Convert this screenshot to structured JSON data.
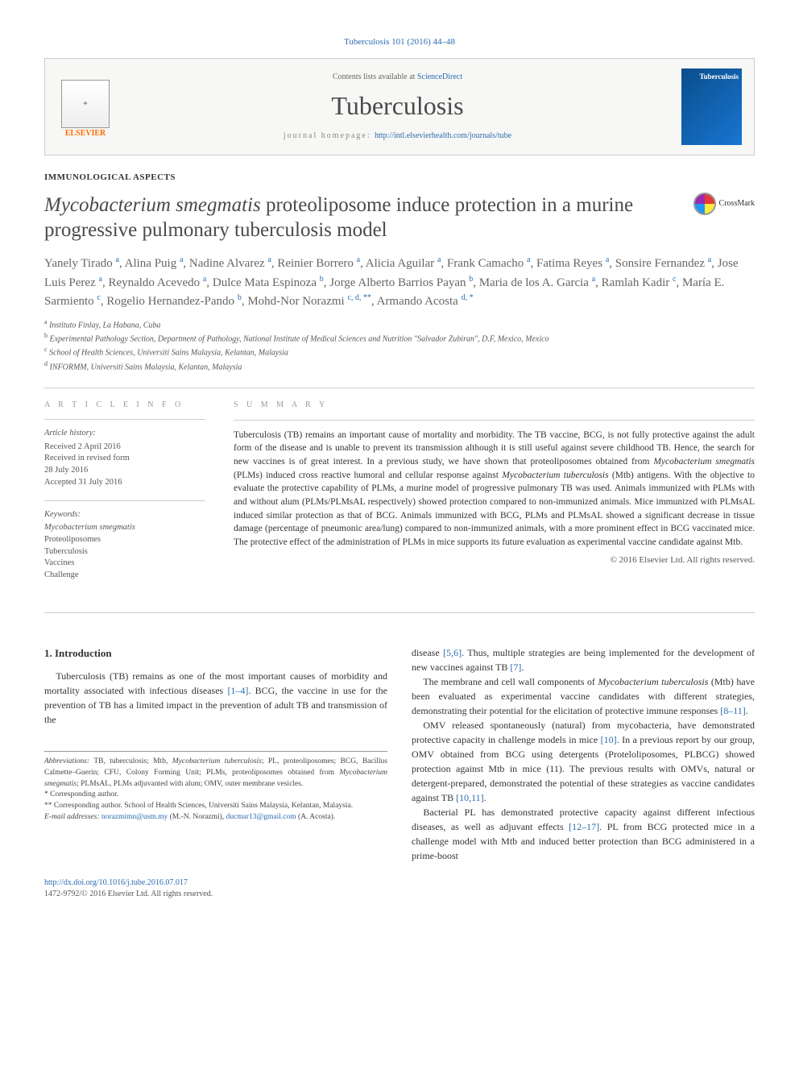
{
  "citation": "Tuberculosis 101 (2016) 44–48",
  "header": {
    "contents_prefix": "Contents lists available at ",
    "contents_link": "ScienceDirect",
    "journal": "Tuberculosis",
    "homepage_prefix": "journal homepage: ",
    "homepage_url": "http://intl.elsevierhealth.com/journals/tube",
    "publisher": "ELSEVIER",
    "cover_label": "Tuberculosis"
  },
  "section_label": "IMMUNOLOGICAL ASPECTS",
  "title_pre_italic": "Mycobacterium smegmatis",
  "title_rest": " proteoliposome induce protection in a murine progressive pulmonary tuberculosis model",
  "crossmark": "CrossMark",
  "authors_html": "Yanely Tirado <sup>a</sup>, Alina Puig <sup>a</sup>, Nadine Alvarez <sup>a</sup>, Reinier Borrero <sup>a</sup>, Alicia Aguilar <sup>a</sup>, Frank Camacho <sup>a</sup>, Fatima Reyes <sup>a</sup>, Sonsire Fernandez <sup>a</sup>, Jose Luis Perez <sup>a</sup>, Reynaldo Acevedo <sup>a</sup>, Dulce Mata Espinoza <sup>b</sup>, Jorge Alberto Barrios Payan <sup>b</sup>, Maria de los A. Garcia <sup>a</sup>, Ramlah Kadir <sup>c</sup>, María E. Sarmiento <sup>c</sup>, Rogelio Hernandez-Pando <sup>b</sup>, Mohd-Nor Norazmi <sup>c, d, **</sup>, Armando Acosta <sup>d, *</sup>",
  "affiliations": [
    {
      "key": "a",
      "text": "Instituto Finlay, La Habana, Cuba"
    },
    {
      "key": "b",
      "text": "Experimental Pathology Section, Department of Pathology, National Institute of Medical Sciences and Nutrition \"Salvador Zubiran\", D.F, Mexico, Mexico"
    },
    {
      "key": "c",
      "text": "School of Health Sciences, Universiti Sains Malaysia, Kelantan, Malaysia"
    },
    {
      "key": "d",
      "text": "INFORMM, Universiti Sains Malaysia, Kelantan, Malaysia"
    }
  ],
  "article_info": {
    "heading": "A R T I C L E  I N F O",
    "history_label": "Article history:",
    "history": [
      "Received 2 April 2016",
      "Received in revised form",
      "28 July 2016",
      "Accepted 31 July 2016"
    ],
    "keywords_label": "Keywords:",
    "keywords": [
      "Mycobacterium smegmatis",
      "Proteoliposomes",
      "Tuberculosis",
      "Vaccines",
      "Challenge"
    ]
  },
  "summary": {
    "heading": "S U M M A R Y",
    "text": "Tuberculosis (TB) remains an important cause of mortality and morbidity. The TB vaccine, BCG, is not fully protective against the adult form of the disease and is unable to prevent its transmission although it is still useful against severe childhood TB. Hence, the search for new vaccines is of great interest. In a previous study, we have shown that proteoliposomes obtained from Mycobacterium smegmatis (PLMs) induced cross reactive humoral and cellular response against Mycobacterium tuberculosis (Mtb) antigens. With the objective to evaluate the protective capability of PLMs, a murine model of progressive pulmonary TB was used. Animals immunized with PLMs with and without alum (PLMs/PLMsAL respectively) showed protection compared to non-immunized animals. Mice immunized with PLMsAL induced similar protection as that of BCG. Animals immunized with BCG, PLMs and PLMsAL showed a significant decrease in tissue damage (percentage of pneumonic area/lung) compared to non-immunized animals, with a more prominent effect in BCG vaccinated mice. The protective effect of the administration of PLMs in mice supports its future evaluation as experimental vaccine candidate against Mtb.",
    "copyright": "© 2016 Elsevier Ltd. All rights reserved."
  },
  "intro": {
    "heading": "1. Introduction",
    "p1_a": "Tuberculosis (TB) remains as one of the most important causes of morbidity and mortality associated with infectious diseases ",
    "p1_ref": "[1–4]",
    "p1_b": ". BCG, the vaccine in use for the prevention of TB has a limited impact in the prevention of adult TB and transmission of the"
  },
  "col2": {
    "p1_a": "disease ",
    "p1_ref1": "[5,6]",
    "p1_b": ". Thus, multiple strategies are being implemented for the development of new vaccines against TB ",
    "p1_ref2": "[7]",
    "p1_c": ".",
    "p2_a": "The membrane and cell wall components of ",
    "p2_it": "Mycobacterium tuberculosis",
    "p2_b": " (Mtb) have been evaluated as experimental vaccine candidates with different strategies, demonstrating their potential for the elicitation of protective immune responses ",
    "p2_ref": "[8–11]",
    "p2_c": ".",
    "p3_a": "OMV released spontaneously (natural) from mycobacteria, have demonstrated protective capacity in challenge models in mice ",
    "p3_ref1": "[10]",
    "p3_b": ". In a previous report by our group, OMV obtained from BCG using detergents (Proteloliposomes, PLBCG) showed protection against Mtb in mice (11). The previous results with OMVs, natural or detergent-prepared, demonstrated the potential of these strategies as vaccine candidates against TB ",
    "p3_ref2": "[10,11]",
    "p3_c": ".",
    "p4_a": "Bacterial PL has demonstrated protective capacity against different infectious diseases, as well as adjuvant effects ",
    "p4_ref": "[12–17]",
    "p4_b": ". PL from BCG protected mice in a challenge model with Mtb and induced better protection than BCG administered in a prime-boost"
  },
  "footnotes": {
    "abbr_label": "Abbreviations:",
    "abbr_text": " TB, tuberculosis; Mtb, Mycobacterium tuberculosis; PL, proteoliposomes; BCG, Bacillus Calmette–Guerin; CFU, Colony Forming Unit; PLMs, proteoliposomes obtained from Mycobacterium smegmatis; PLMsAL, PLMs adjuvanted with alum; OMV, outer membrane vesicles.",
    "corr1": "* Corresponding author.",
    "corr2": "** Corresponding author. School of Health Sciences, Universiti Sains Malaysia, Kelantan, Malaysia.",
    "email_label": "E-mail addresses: ",
    "email1": "norazmimn@usm.my",
    "email1_who": " (M.-N. Norazmi), ",
    "email2": "ducmar13@gmail.com",
    "email2_who": " (A. Acosta)."
  },
  "footer": {
    "doi": "http://dx.doi.org/10.1016/j.tube.2016.07.017",
    "issn_line": "1472-9792/© 2016 Elsevier Ltd. All rights reserved."
  },
  "colors": {
    "link": "#2b6cb0",
    "text": "#333333",
    "muted": "#666666",
    "border": "#cccccc",
    "orange": "#ff6b00"
  }
}
